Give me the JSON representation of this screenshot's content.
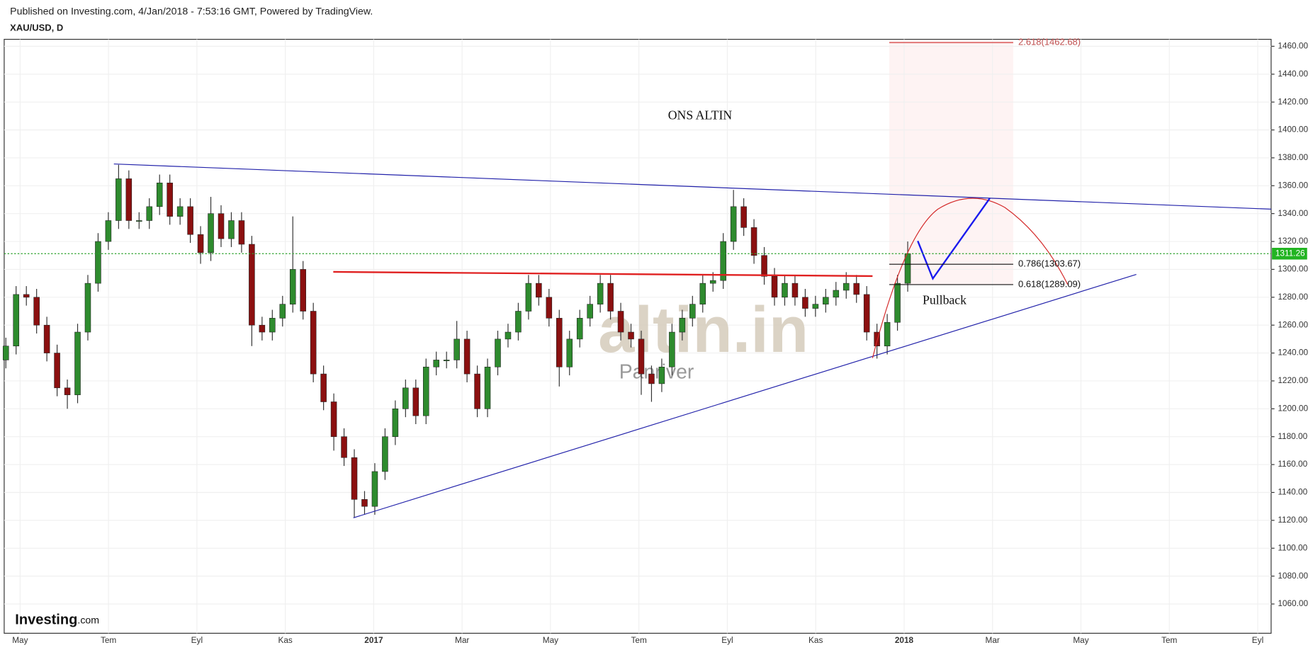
{
  "chart_data": {
    "type": "candlestick",
    "header": "Published on Investing.com, 4/Jan/2018 - 7:53:16 GMT, Powered by TradingView.",
    "title": "XAU/USD, D",
    "annotation": "ONS ALTIN",
    "pullback_label": "Pullback",
    "watermark": "altin.in",
    "watermark_sub": "Panriver",
    "logo": "Investing",
    "logo_suffix": ".com",
    "x_labels": [
      "May",
      "Tem",
      "Eyl",
      "Kas",
      "2017",
      "Mar",
      "May",
      "Tem",
      "Eyl",
      "Kas",
      "2018",
      "Mar",
      "May",
      "Tem",
      "Eyl"
    ],
    "open": [
      1235,
      1245,
      1282,
      1280,
      1260,
      1240,
      1215,
      1210,
      1255,
      1290,
      1320,
      1335,
      1365,
      1335,
      1335,
      1345,
      1362,
      1338,
      1345,
      1325,
      1312,
      1340,
      1322,
      1335,
      1318,
      1260,
      1255,
      1265,
      1275,
      1300,
      1270,
      1225,
      1205,
      1180,
      1165,
      1135,
      1130,
      1155,
      1180,
      1200,
      1215,
      1195,
      1230,
      1235,
      1235,
      1250,
      1225,
      1200,
      1230,
      1250,
      1255,
      1270,
      1290,
      1280,
      1265,
      1230,
      1250,
      1265,
      1275,
      1290,
      1270,
      1255,
      1250,
      1225,
      1218,
      1230,
      1255,
      1265,
      1275,
      1290,
      1292,
      1320,
      1345,
      1330,
      1310,
      1295,
      1280,
      1290,
      1280,
      1272,
      1275,
      1280,
      1285,
      1290,
      1282,
      1255,
      1245,
      1262,
      1290
    ],
    "high": [
      1251,
      1288,
      1288,
      1286,
      1266,
      1246,
      1221,
      1261,
      1296,
      1326,
      1341,
      1375,
      1371,
      1341,
      1351,
      1368,
      1368,
      1351,
      1351,
      1331,
      1352,
      1346,
      1341,
      1341,
      1324,
      1266,
      1271,
      1281,
      1338,
      1306,
      1276,
      1231,
      1211,
      1186,
      1171,
      1141,
      1161,
      1186,
      1206,
      1221,
      1221,
      1236,
      1241,
      1241,
      1263,
      1256,
      1231,
      1236,
      1256,
      1261,
      1276,
      1296,
      1296,
      1286,
      1271,
      1256,
      1271,
      1281,
      1296,
      1296,
      1276,
      1261,
      1256,
      1231,
      1236,
      1261,
      1271,
      1281,
      1296,
      1298,
      1326,
      1357,
      1351,
      1336,
      1316,
      1301,
      1296,
      1296,
      1286,
      1281,
      1286,
      1291,
      1298,
      1296,
      1288,
      1261,
      1268,
      1296,
      1320
    ],
    "low": [
      1229,
      1239,
      1274,
      1254,
      1234,
      1209,
      1200,
      1204,
      1249,
      1284,
      1314,
      1329,
      1329,
      1329,
      1329,
      1339,
      1332,
      1332,
      1319,
      1304,
      1306,
      1316,
      1316,
      1312,
      1245,
      1249,
      1249,
      1259,
      1269,
      1264,
      1219,
      1199,
      1170,
      1159,
      1122,
      1124,
      1124,
      1149,
      1174,
      1194,
      1189,
      1189,
      1224,
      1229,
      1229,
      1219,
      1194,
      1194,
      1224,
      1244,
      1249,
      1264,
      1274,
      1259,
      1216,
      1224,
      1244,
      1259,
      1269,
      1264,
      1249,
      1244,
      1210,
      1205,
      1212,
      1224,
      1249,
      1259,
      1269,
      1284,
      1286,
      1314,
      1324,
      1304,
      1289,
      1274,
      1274,
      1274,
      1266,
      1266,
      1269,
      1274,
      1279,
      1276,
      1249,
      1236,
      1239,
      1256,
      1284
    ],
    "close": [
      1245,
      1282,
      1280,
      1260,
      1240,
      1215,
      1210,
      1255,
      1290,
      1320,
      1335,
      1365,
      1335,
      1335,
      1345,
      1362,
      1338,
      1345,
      1325,
      1312,
      1340,
      1322,
      1335,
      1318,
      1260,
      1255,
      1265,
      1275,
      1300,
      1270,
      1225,
      1205,
      1180,
      1165,
      1135,
      1130,
      1155,
      1180,
      1200,
      1215,
      1195,
      1230,
      1235,
      1235,
      1250,
      1225,
      1200,
      1230,
      1250,
      1255,
      1270,
      1290,
      1280,
      1265,
      1230,
      1250,
      1265,
      1275,
      1290,
      1270,
      1255,
      1250,
      1225,
      1218,
      1230,
      1255,
      1265,
      1275,
      1290,
      1292,
      1320,
      1345,
      1330,
      1310,
      1295,
      1280,
      1290,
      1280,
      1272,
      1275,
      1280,
      1285,
      1290,
      1282,
      1255,
      1245,
      1262,
      1290,
      1311.26
    ],
    "up_color": "#2e8b2e",
    "down_color": "#8b1010",
    "ylim": [
      1039,
      1465
    ],
    "yticks": [
      {
        "value": 1060,
        "label": "1060.00"
      },
      {
        "value": 1080,
        "label": "1080.00"
      },
      {
        "value": 1100,
        "label": "1100.00"
      },
      {
        "value": 1120,
        "label": "1120.00"
      },
      {
        "value": 1140,
        "label": "1140.00"
      },
      {
        "value": 1160,
        "label": "1160.00"
      },
      {
        "value": 1180,
        "label": "1180.00"
      },
      {
        "value": 1200,
        "label": "1200.00"
      },
      {
        "value": 1220,
        "label": "1220.00"
      },
      {
        "value": 1240,
        "label": "1240.00"
      },
      {
        "value": 1260,
        "label": "1260.00"
      },
      {
        "value": 1280,
        "label": "1280.00"
      },
      {
        "value": 1300,
        "label": "1300.00"
      },
      {
        "value": 1320,
        "label": "1320.00"
      },
      {
        "value": 1340,
        "label": "1340.00"
      },
      {
        "value": 1360,
        "label": "1360.00"
      },
      {
        "value": 1380,
        "label": "1380.00"
      },
      {
        "value": 1400,
        "label": "1400.00"
      },
      {
        "value": 1420,
        "label": "1420.00"
      },
      {
        "value": 1440,
        "label": "1440.00"
      },
      {
        "value": 1460,
        "label": "1460.00"
      }
    ],
    "fib_levels": [
      {
        "value": 1462.68,
        "label": "2.618(1462.68)"
      },
      {
        "value": 1303.67,
        "label": "0.786(1303.67)"
      },
      {
        "value": 1289.09,
        "label": "0.618(1289.09)"
      }
    ],
    "grid": true
  }
}
